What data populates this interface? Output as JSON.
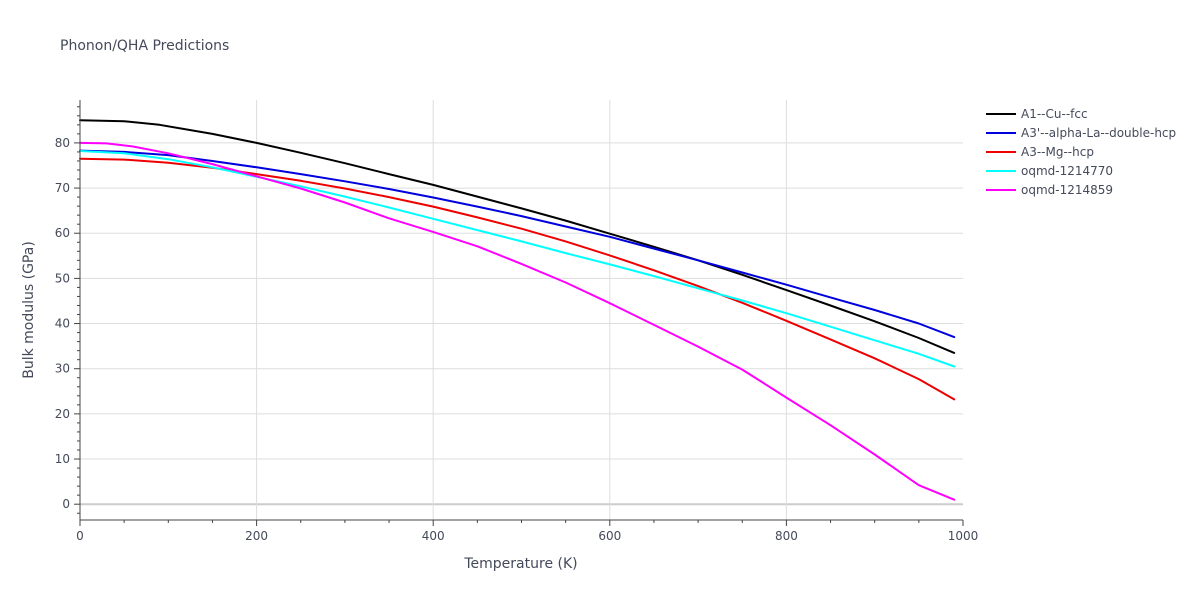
{
  "chart_data": {
    "type": "line",
    "title": "Phonon/QHA Predictions",
    "xlabel": "Temperature (K)",
    "ylabel": "Bulk modulus (GPa)",
    "xlim": [
      0,
      1000
    ],
    "ylim": [
      -3.5,
      89.5
    ],
    "xticks": [
      0,
      200,
      400,
      600,
      800,
      1000
    ],
    "yticks": [
      0,
      10,
      20,
      30,
      40,
      50,
      60,
      70,
      80
    ],
    "grid": true,
    "legend_position": "top-right",
    "series": [
      {
        "name": "A1--Cu--fcc",
        "color": "#000000",
        "x": [
          0,
          50,
          90,
          150,
          200,
          250,
          300,
          350,
          400,
          450,
          500,
          550,
          600,
          650,
          700,
          750,
          800,
          850,
          900,
          950,
          990
        ],
        "y": [
          85,
          84.8,
          84,
          82,
          80,
          77.8,
          75.5,
          73.1,
          70.7,
          68.1,
          65.5,
          62.8,
          59.9,
          57,
          54,
          50.8,
          47.4,
          44,
          40.5,
          36.8,
          33.5
        ]
      },
      {
        "name": "A3'--alpha-La--double-hcp",
        "color": "#0000dd",
        "x": [
          0,
          50,
          100,
          150,
          200,
          250,
          300,
          350,
          400,
          450,
          500,
          550,
          600,
          650,
          700,
          750,
          800,
          850,
          900,
          950,
          990
        ],
        "y": [
          78.3,
          78,
          77.3,
          76,
          74.6,
          73.1,
          71.5,
          69.8,
          67.9,
          65.9,
          63.8,
          61.5,
          59.2,
          56.6,
          54,
          51.3,
          48.6,
          45.8,
          43,
          40,
          37
        ]
      },
      {
        "name": "A3--Mg--hcp",
        "color": "#ee0000",
        "x": [
          0,
          50,
          100,
          150,
          200,
          250,
          300,
          350,
          400,
          450,
          500,
          550,
          600,
          650,
          700,
          750,
          800,
          850,
          900,
          950,
          990
        ],
        "y": [
          76.5,
          76.3,
          75.6,
          74.5,
          73.1,
          71.6,
          69.9,
          68,
          65.9,
          63.5,
          61,
          58.2,
          55.1,
          51.8,
          48.3,
          44.6,
          40.6,
          36.5,
          32.3,
          27.7,
          23.2
        ]
      },
      {
        "name": "oqmd-1214770",
        "color": "#00ffff",
        "x": [
          0,
          50,
          100,
          150,
          200,
          250,
          300,
          350,
          400,
          450,
          500,
          550,
          600,
          650,
          700,
          750,
          800,
          850,
          900,
          950,
          990
        ],
        "y": [
          78.2,
          77.7,
          76.4,
          74.6,
          72.5,
          70.4,
          68.1,
          65.7,
          63.2,
          60.7,
          58.2,
          55.6,
          53.1,
          50.5,
          47.8,
          45.1,
          42.3,
          39.3,
          36.3,
          33.3,
          30.5
        ]
      },
      {
        "name": "oqmd-1214859",
        "color": "#ff00ff",
        "x": [
          0,
          30,
          60,
          100,
          150,
          200,
          250,
          300,
          350,
          400,
          450,
          500,
          550,
          600,
          650,
          700,
          750,
          800,
          850,
          900,
          950,
          990
        ],
        "y": [
          80,
          79.9,
          79.2,
          77.7,
          75.3,
          72.6,
          69.9,
          66.8,
          63.3,
          60.3,
          57.1,
          53.2,
          49.1,
          44.5,
          39.7,
          34.9,
          29.8,
          23.6,
          17.5,
          11,
          4.2,
          1
        ]
      }
    ]
  }
}
